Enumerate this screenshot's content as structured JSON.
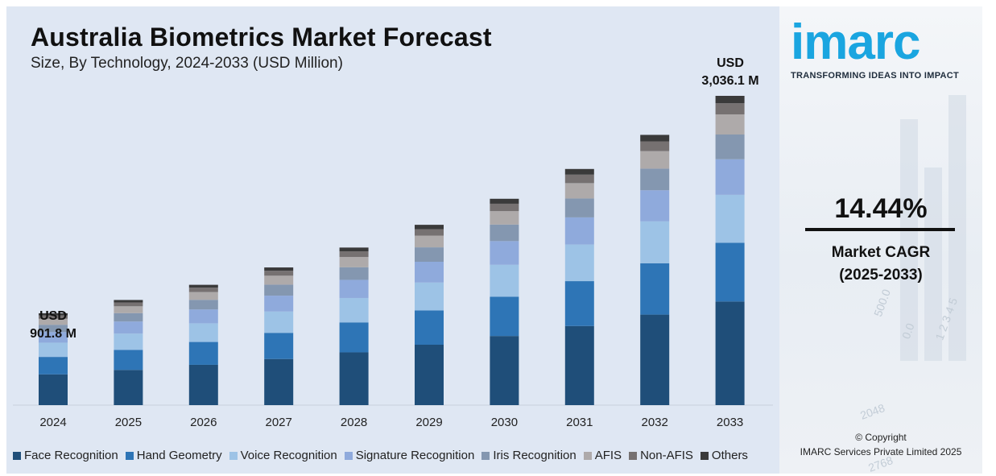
{
  "title": "Australia Biometrics Market Forecast",
  "subtitle": "Size, By Technology, 2024-2033 (USD Million)",
  "annotations": {
    "start_line1": "USD",
    "start_line2": "901.8 M",
    "end_line1": "USD",
    "end_line2": "3,036.1 M"
  },
  "side": {
    "logo_text": "imarc",
    "tagline": "TRANSFORMING IDEAS INTO IMPACT",
    "cagr_value": "14.44%",
    "cagr_label_line1": "Market CAGR",
    "cagr_label_line2": "(2025-2033)",
    "copyright_line1": "© Copyright",
    "copyright_line2": "IMARC Services Private Limited 2025",
    "decor_numbers": [
      "500.0",
      "0.0",
      "1 2 3 4 5",
      "2048",
      "2768"
    ]
  },
  "chart_data": {
    "type": "bar",
    "stacked": true,
    "categories": [
      "2024",
      "2025",
      "2026",
      "2027",
      "2028",
      "2029",
      "2030",
      "2031",
      "2032",
      "2033"
    ],
    "totals": [
      901.8,
      1032.1,
      1181.1,
      1351.6,
      1546.8,
      1770.1,
      2025.7,
      2318.2,
      2652.9,
      3036.1
    ],
    "series": [
      {
        "name": "Face Recognition",
        "color": "#1f4e79",
        "values": [
          302.1,
          345.8,
          395.7,
          452.8,
          518.2,
          593.0,
          678.6,
          776.6,
          888.7,
          1017.1
        ]
      },
      {
        "name": "Hand Geometry",
        "color": "#2e75b6",
        "values": [
          171.3,
          196.1,
          224.4,
          256.8,
          293.9,
          336.3,
          384.9,
          440.5,
          504.1,
          576.9
        ]
      },
      {
        "name": "Voice Recognition",
        "color": "#9dc3e6",
        "values": [
          139.8,
          160.0,
          183.1,
          209.5,
          239.8,
          274.4,
          314.0,
          359.3,
          411.2,
          470.6
        ]
      },
      {
        "name": "Signature Recognition",
        "color": "#8faadc",
        "values": [
          103.7,
          118.7,
          135.8,
          155.4,
          177.9,
          203.6,
          232.9,
          266.6,
          305.1,
          349.1
        ]
      },
      {
        "name": "Iris Recognition",
        "color": "#8497b0",
        "values": [
          72.1,
          82.6,
          94.5,
          108.1,
          123.7,
          141.6,
          162.1,
          185.5,
          212.2,
          242.9
        ]
      },
      {
        "name": "AFIS",
        "color": "#aeaaaa",
        "values": [
          58.6,
          67.1,
          76.8,
          87.9,
          100.5,
          115.1,
          131.7,
          150.7,
          172.4,
          197.3
        ]
      },
      {
        "name": "Non-AFIS",
        "color": "#767171",
        "values": [
          32.5,
          37.2,
          42.5,
          48.7,
          55.7,
          63.7,
          72.9,
          83.5,
          95.5,
          109.3
        ]
      },
      {
        "name": "Others",
        "color": "#3a3a3a",
        "values": [
          21.7,
          24.6,
          28.3,
          32.4,
          37.1,
          42.4,
          48.6,
          55.5,
          63.7,
          72.9
        ]
      }
    ],
    "ylim": [
      0,
      3036.1
    ],
    "grid": false,
    "legend_position": "bottom"
  }
}
